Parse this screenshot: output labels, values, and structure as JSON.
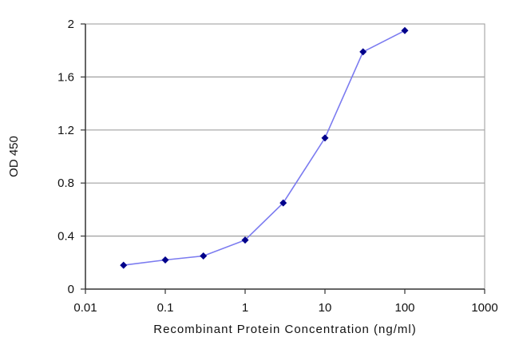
{
  "chart_data": {
    "type": "scatter",
    "title": "",
    "xlabel": "Recombinant Protein Concentration (ng/ml)",
    "ylabel": "OD 450",
    "xscale": "log",
    "xlim": [
      0.01,
      1000
    ],
    "ylim": [
      0,
      2
    ],
    "grid": "horizontal",
    "legend": "none",
    "xticks": [
      0.01,
      0.1,
      1,
      10,
      100,
      1000
    ],
    "xtick_labels": [
      "0.01",
      "0.1",
      "1",
      "10",
      "100",
      "1000"
    ],
    "yticks": [
      0,
      0.4,
      0.8,
      1.2,
      1.6,
      2
    ],
    "ytick_labels": [
      "0",
      "0.4",
      "0.8",
      "1.2",
      "1.6",
      "2"
    ],
    "series": [
      {
        "x": [
          0.03,
          0.1,
          0.3,
          1,
          3,
          10,
          30,
          100
        ],
        "y": [
          0.18,
          0.22,
          0.25,
          0.37,
          0.65,
          1.14,
          1.79,
          1.95
        ],
        "line_color": "#7b7bf0",
        "marker_color": "#00008b"
      }
    ],
    "plot_background": "#ffffff",
    "grid_color": "#a0a0a0"
  }
}
